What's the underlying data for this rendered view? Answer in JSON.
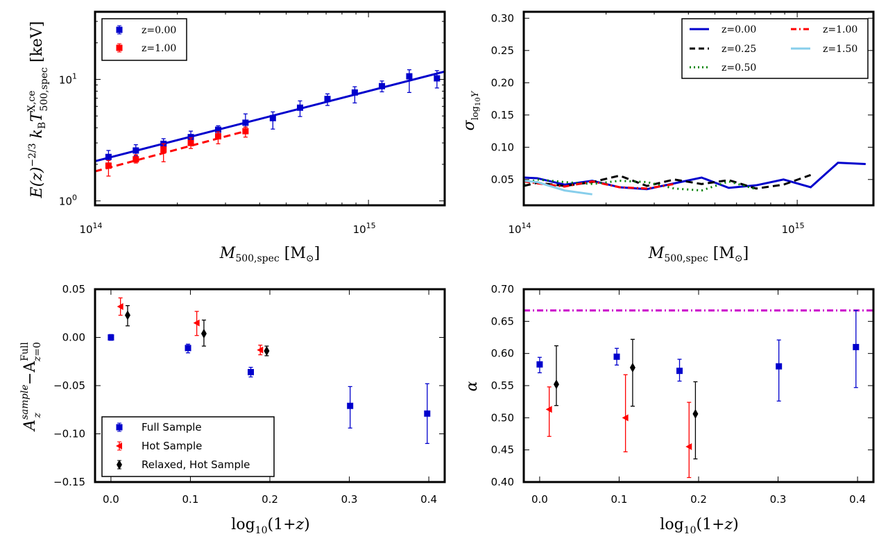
{
  "chart_data": [
    {
      "id": "p1",
      "type": "scatter",
      "xscale": "log",
      "yscale": "log",
      "xlim": [
        100000000000000.0,
        1900000000000000.0
      ],
      "ylim": [
        0.92,
        36
      ],
      "xlabel": "M_{500,spec} [M_⊙]",
      "ylabel": "E(z)^{-2/3} k_B T^{X,ce}_{500,spec} [keV]",
      "xticklabels": [
        {
          "v": 100000000000000.0,
          "t": "10",
          "e": "14"
        },
        {
          "v": 1000000000000000.0,
          "t": "10",
          "e": "15"
        }
      ],
      "yticklabels": [
        {
          "v": 1,
          "t": "10",
          "e": "0"
        },
        {
          "v": 10,
          "t": "10",
          "e": "1"
        }
      ],
      "legend": {
        "loc": "upper-left",
        "entries": [
          "z=0.00",
          "z=1.00"
        ]
      },
      "series": [
        {
          "name": "z=0.00",
          "color": "#0000cc",
          "marker": "square",
          "x": [
            112000000000000.0,
            141000000000000.0,
            178000000000000.0,
            224000000000000.0,
            282000000000000.0,
            355000000000000.0,
            447000000000000.0,
            562000000000000.0,
            708000000000000.0,
            891000000000000.0,
            1120000000000000.0,
            1410000000000000.0,
            1780000000000000.0
          ],
          "y": [
            2.3,
            2.6,
            2.95,
            3.35,
            3.85,
            4.4,
            4.8,
            5.85,
            6.9,
            7.8,
            8.8,
            10.6,
            10.2
          ],
          "yerr_lo": [
            0.25,
            0.25,
            0.3,
            0.35,
            0.3,
            0.35,
            0.9,
            0.9,
            0.8,
            1.4,
            0.9,
            2.8,
            1.7
          ],
          "yerr_hi": [
            0.3,
            0.3,
            0.3,
            0.4,
            0.3,
            0.8,
            0.6,
            0.8,
            0.7,
            0.9,
            0.9,
            1.4,
            1.6
          ]
        },
        {
          "name": "z=1.00",
          "color": "#ff0000",
          "marker": "square",
          "x": [
            112000000000000.0,
            141000000000000.0,
            178000000000000.0,
            224000000000000.0,
            282000000000000.0,
            355000000000000.0
          ],
          "y": [
            1.95,
            2.2,
            2.65,
            3.0,
            3.4,
            3.75
          ],
          "yerr_lo": [
            0.35,
            0.15,
            0.55,
            0.3,
            0.45,
            0.4
          ],
          "yerr_hi": [
            0.2,
            0.2,
            0.3,
            0.3,
            0.3,
            0.3
          ]
        }
      ],
      "fits": [
        {
          "name": "z=0.00 fit",
          "color": "#0000cc",
          "style": "solid",
          "x": [
            100000000000000.0,
            1900000000000000.0
          ],
          "y": [
            2.12,
            11.6
          ]
        },
        {
          "name": "z=1.00 fit",
          "color": "#ff0000",
          "style": "dashed",
          "x": [
            100000000000000.0,
            355000000000000.0
          ],
          "y": [
            1.75,
            3.75
          ]
        }
      ]
    },
    {
      "id": "p2",
      "type": "line",
      "xscale": "log",
      "yscale": "linear",
      "xlim": [
        100000000000000.0,
        1900000000000000.0
      ],
      "ylim": [
        0.01,
        0.31
      ],
      "xlabel": "M_{500,spec} [M_⊙]",
      "ylabel": "σ_{log10 Y}",
      "xticklabels": [
        {
          "v": 100000000000000.0,
          "t": "10",
          "e": "14"
        },
        {
          "v": 1000000000000000.0,
          "t": "10",
          "e": "15"
        }
      ],
      "yticks": [
        0.05,
        0.1,
        0.15,
        0.2,
        0.25,
        0.3
      ],
      "yticklabels": [
        "0.05",
        "0.10",
        "0.15",
        "0.20",
        "0.25",
        "0.30"
      ],
      "legend": {
        "loc": "upper-right",
        "entries": [
          "z=0.00",
          "z=0.25",
          "z=0.50",
          "z=1.00",
          "z=1.50"
        ]
      },
      "series": [
        {
          "name": "z=0.00",
          "color": "#0000cc",
          "style": "solid",
          "x": [
            100000000000000.0,
            112000000000000.0,
            141000000000000.0,
            178000000000000.0,
            224000000000000.0,
            282000000000000.0,
            355000000000000.0,
            447000000000000.0,
            562000000000000.0,
            708000000000000.0,
            891000000000000.0,
            1120000000000000.0,
            1410000000000000.0,
            1780000000000000.0
          ],
          "y": [
            0.053,
            0.052,
            0.042,
            0.048,
            0.038,
            0.035,
            0.044,
            0.053,
            0.037,
            0.041,
            0.05,
            0.038,
            0.076,
            0.074
          ]
        },
        {
          "name": "z=0.25",
          "color": "#000000",
          "style": "dashed",
          "x": [
            100000000000000.0,
            112000000000000.0,
            141000000000000.0,
            178000000000000.0,
            224000000000000.0,
            282000000000000.0,
            355000000000000.0,
            447000000000000.0,
            562000000000000.0,
            708000000000000.0,
            891000000000000.0,
            1120000000000000.0
          ],
          "y": [
            0.04,
            0.045,
            0.04,
            0.046,
            0.056,
            0.04,
            0.05,
            0.043,
            0.049,
            0.036,
            0.042,
            0.057
          ]
        },
        {
          "name": "z=0.50",
          "color": "#008000",
          "style": "dotted",
          "x": [
            100000000000000.0,
            112000000000000.0,
            141000000000000.0,
            178000000000000.0,
            224000000000000.0,
            282000000000000.0,
            355000000000000.0,
            447000000000000.0,
            562000000000000.0,
            708000000000000.0
          ],
          "y": [
            0.043,
            0.05,
            0.046,
            0.043,
            0.048,
            0.046,
            0.036,
            0.033,
            0.047,
            0.035
          ]
        },
        {
          "name": "z=1.00",
          "color": "#ff0000",
          "style": "dashdot",
          "x": [
            100000000000000.0,
            112000000000000.0,
            141000000000000.0,
            178000000000000.0,
            224000000000000.0,
            282000000000000.0,
            355000000000000.0
          ],
          "y": [
            0.047,
            0.044,
            0.039,
            0.047,
            0.038,
            0.036,
            0.043
          ]
        },
        {
          "name": "z=1.50",
          "color": "#87ceeb",
          "style": "solid",
          "x": [
            100000000000000.0,
            112000000000000.0,
            141000000000000.0,
            178000000000000.0
          ],
          "y": [
            0.048,
            0.046,
            0.033,
            0.027
          ]
        }
      ]
    },
    {
      "id": "p3",
      "type": "scatter",
      "xscale": "linear",
      "yscale": "linear",
      "xlim": [
        -0.02,
        0.42
      ],
      "ylim": [
        -0.15,
        0.05
      ],
      "xlabel": "log10(1+z)",
      "ylabel": "A_z^{sample} − A_{z=0}^{Full}",
      "xticks": [
        0.0,
        0.1,
        0.2,
        0.3,
        0.4
      ],
      "xticklabels": [
        "0.0",
        "0.1",
        "0.2",
        "0.3",
        "0.4"
      ],
      "yticks": [
        -0.15,
        -0.1,
        -0.05,
        0.0,
        0.05
      ],
      "yticklabels": [
        "−0.15",
        "−0.10",
        "−0.05",
        "0.00",
        "0.05"
      ],
      "legend": {
        "loc": "lower-left",
        "entries": [
          "Full Sample",
          "Hot Sample",
          "Relaxed, Hot Sample"
        ]
      },
      "series": [
        {
          "name": "Full Sample",
          "color": "#0000cc",
          "marker": "square",
          "x": [
            0.0,
            0.097,
            0.176,
            0.301,
            0.398
          ],
          "y": [
            0.0,
            -0.011,
            -0.036,
            -0.071,
            -0.079
          ],
          "yerr_lo": [
            0.003,
            0.005,
            0.005,
            0.023,
            0.031
          ],
          "yerr_hi": [
            0.003,
            0.004,
            0.005,
            0.02,
            0.031
          ]
        },
        {
          "name": "Hot Sample",
          "color": "#ff0000",
          "marker": "triangle-left",
          "x": [
            0.012,
            0.108,
            0.188
          ],
          "y": [
            0.032,
            0.015,
            -0.013
          ],
          "yerr_lo": [
            0.009,
            0.013,
            0.005
          ],
          "yerr_hi": [
            0.009,
            0.012,
            0.005
          ]
        },
        {
          "name": "Relaxed, Hot Sample",
          "color": "#000000",
          "marker": "diamond",
          "x": [
            0.021,
            0.117,
            0.196
          ],
          "y": [
            0.023,
            0.004,
            -0.014
          ],
          "yerr_lo": [
            0.011,
            0.013,
            0.005
          ],
          "yerr_hi": [
            0.01,
            0.014,
            0.005
          ]
        }
      ]
    },
    {
      "id": "p4",
      "type": "scatter",
      "xscale": "linear",
      "yscale": "linear",
      "xlim": [
        -0.02,
        0.42
      ],
      "ylim": [
        0.4,
        0.7
      ],
      "xlabel": "log10(1+z)",
      "ylabel": "α",
      "xticks": [
        0.0,
        0.1,
        0.2,
        0.3,
        0.4
      ],
      "xticklabels": [
        "0.0",
        "0.1",
        "0.2",
        "0.3",
        "0.4"
      ],
      "yticks": [
        0.4,
        0.45,
        0.5,
        0.55,
        0.6,
        0.65,
        0.7
      ],
      "yticklabels": [
        "0.40",
        "0.45",
        "0.50",
        "0.55",
        "0.60",
        "0.65",
        "0.70"
      ],
      "hline": {
        "y": 0.667,
        "color": "#cc00cc",
        "style": "dashdot"
      },
      "series": [
        {
          "name": "Full Sample",
          "color": "#0000cc",
          "marker": "square",
          "x": [
            0.0,
            0.097,
            0.176,
            0.301,
            0.398
          ],
          "y": [
            0.583,
            0.595,
            0.573,
            0.58,
            0.61
          ],
          "yerr_lo": [
            0.013,
            0.013,
            0.016,
            0.054,
            0.063
          ],
          "yerr_hi": [
            0.011,
            0.013,
            0.018,
            0.041,
            0.057
          ]
        },
        {
          "name": "Hot Sample",
          "color": "#ff0000",
          "marker": "triangle-left",
          "x": [
            0.012,
            0.108,
            0.188
          ],
          "y": [
            0.513,
            0.5,
            0.455
          ],
          "yerr_lo": [
            0.042,
            0.053,
            0.048
          ],
          "yerr_hi": [
            0.035,
            0.067,
            0.069
          ]
        },
        {
          "name": "Relaxed, Hot Sample",
          "color": "#000000",
          "marker": "diamond",
          "x": [
            0.021,
            0.117,
            0.196
          ],
          "y": [
            0.552,
            0.578,
            0.506
          ],
          "yerr_lo": [
            0.033,
            0.06,
            0.07
          ],
          "yerr_hi": [
            0.06,
            0.044,
            0.05
          ]
        }
      ]
    }
  ]
}
